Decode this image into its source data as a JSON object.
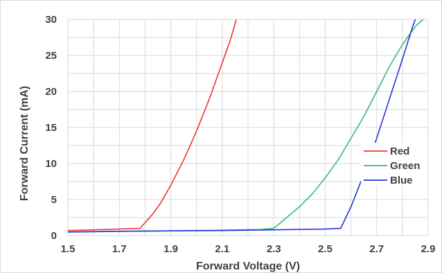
{
  "chart_data": {
    "type": "line",
    "title": "",
    "xlabel": "Forward Voltage (V)",
    "ylabel": "Forward Current (mA)",
    "xlim": [
      1.5,
      2.9
    ],
    "ylim": [
      0,
      30
    ],
    "x_ticks": [
      "1.5",
      "1.7",
      "1.9",
      "2.1",
      "2.3",
      "2.5",
      "2.7",
      "2.9"
    ],
    "y_ticks": [
      "0",
      "5",
      "10",
      "15",
      "20",
      "25",
      "30"
    ],
    "grid": true,
    "legend_position": "right",
    "series": [
      {
        "name": "Red",
        "color": "#ee3333",
        "points": [
          [
            1.5,
            0.7
          ],
          [
            1.6,
            0.8
          ],
          [
            1.7,
            0.9
          ],
          [
            1.78,
            1.0
          ],
          [
            1.8,
            1.8
          ],
          [
            1.83,
            3.0
          ],
          [
            1.86,
            4.5
          ],
          [
            1.9,
            7.0
          ],
          [
            1.95,
            10.5
          ],
          [
            2.0,
            14.5
          ],
          [
            2.05,
            19.0
          ],
          [
            2.1,
            24.0
          ],
          [
            2.13,
            27.0
          ],
          [
            2.155,
            30.0
          ]
        ]
      },
      {
        "name": "Green",
        "color": "#33bb77",
        "points": [
          [
            1.5,
            0.5
          ],
          [
            1.7,
            0.6
          ],
          [
            1.9,
            0.65
          ],
          [
            2.1,
            0.75
          ],
          [
            2.25,
            0.85
          ],
          [
            2.3,
            1.0
          ],
          [
            2.35,
            2.5
          ],
          [
            2.4,
            4.0
          ],
          [
            2.45,
            5.8
          ],
          [
            2.5,
            8.0
          ],
          [
            2.55,
            10.5
          ],
          [
            2.6,
            13.5
          ],
          [
            2.65,
            16.5
          ],
          [
            2.7,
            20.0
          ],
          [
            2.75,
            23.5
          ],
          [
            2.8,
            26.5
          ],
          [
            2.85,
            29.0
          ],
          [
            2.88,
            30.0
          ]
        ]
      },
      {
        "name": "Blue",
        "color": "#2233dd",
        "points": [
          [
            1.5,
            0.5
          ],
          [
            1.7,
            0.6
          ],
          [
            1.9,
            0.65
          ],
          [
            2.1,
            0.7
          ],
          [
            2.3,
            0.8
          ],
          [
            2.5,
            0.9
          ],
          [
            2.56,
            1.0
          ],
          [
            2.6,
            4.0
          ],
          [
            2.65,
            8.5
          ],
          [
            2.7,
            13.5
          ],
          [
            2.75,
            19.0
          ],
          [
            2.8,
            24.5
          ],
          [
            2.84,
            29.0
          ],
          [
            2.85,
            30.0
          ]
        ]
      }
    ]
  }
}
